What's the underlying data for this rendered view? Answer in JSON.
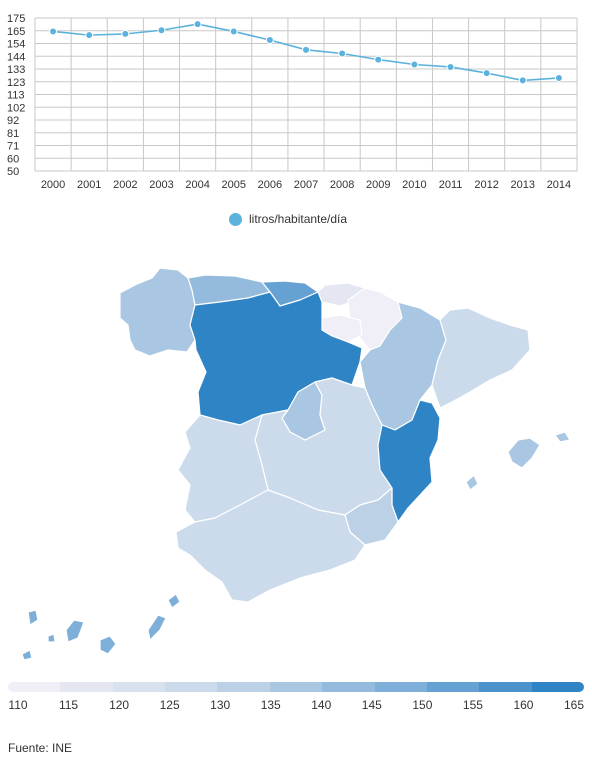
{
  "chart_data": {
    "type": "line",
    "title": "",
    "xlabel": "",
    "ylabel": "",
    "ylim": [
      50,
      175
    ],
    "y_ticks": [
      "50",
      "60",
      "71",
      "81",
      "92",
      "102",
      "113",
      "123",
      "133",
      "144",
      "154",
      "165",
      "175"
    ],
    "x": [
      "2000",
      "2001",
      "2002",
      "2003",
      "2004",
      "2005",
      "2006",
      "2007",
      "2008",
      "2009",
      "2010",
      "2011",
      "2012",
      "2013",
      "2014"
    ],
    "series": [
      {
        "name": "litros/habitante/día",
        "values": [
          164,
          161,
          162,
          165,
          170,
          164,
          157,
          149,
          146,
          141,
          137,
          135,
          130,
          124,
          126
        ],
        "color": "#5bb2dd"
      }
    ],
    "grid": true,
    "legend_position": "bottom"
  },
  "map": {
    "scale_colors": [
      "#f0eef6",
      "#e4e7f1",
      "#d8e1ee",
      "#ccdbeb",
      "#bcd1e6",
      "#a9c7e2",
      "#94bade",
      "#7dafd8",
      "#65a2d3",
      "#4c93cc",
      "#2f84c5"
    ],
    "scale_labels": [
      "110",
      "115",
      "120",
      "125",
      "130",
      "135",
      "140",
      "145",
      "150",
      "155",
      "160",
      "165"
    ]
  },
  "source": "Fuente: INE"
}
